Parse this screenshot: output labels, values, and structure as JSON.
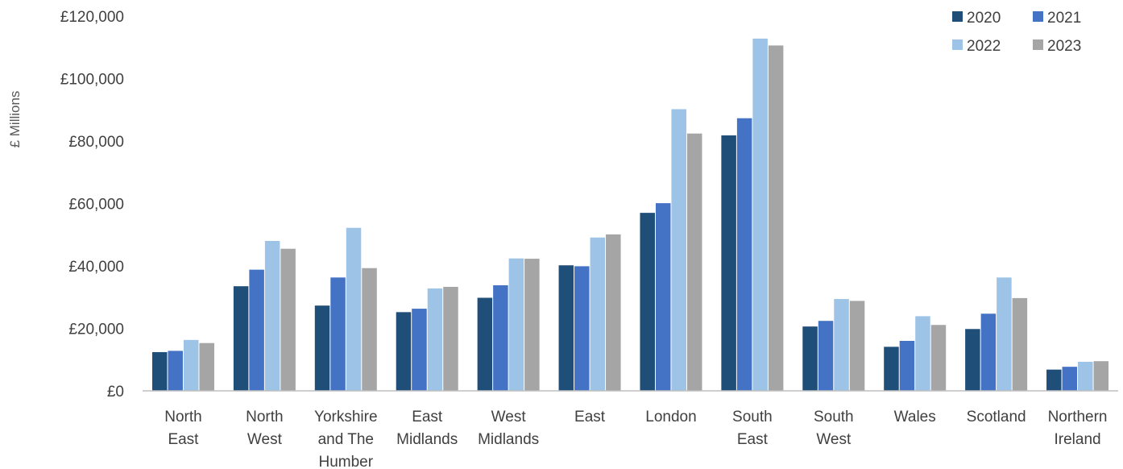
{
  "chart_data": {
    "type": "bar",
    "title": "",
    "xlabel": "",
    "ylabel": "£ Millions",
    "ylim": [
      0,
      120000
    ],
    "ytick_values": [
      0,
      20000,
      40000,
      60000,
      80000,
      100000,
      120000
    ],
    "ytick_labels": [
      "£0",
      "£20,000",
      "£40,000",
      "£60,000",
      "£80,000",
      "£100,000",
      "£120,000"
    ],
    "grid": false,
    "legend_position": "top-right",
    "categories": [
      [
        "North",
        "East"
      ],
      [
        "North",
        "West"
      ],
      [
        "Yorkshire",
        "and The",
        "Humber"
      ],
      [
        "East",
        "Midlands"
      ],
      [
        "West",
        "Midlands"
      ],
      [
        "East"
      ],
      [
        "London"
      ],
      [
        "South",
        "East"
      ],
      [
        "South",
        "West"
      ],
      [
        "Wales"
      ],
      [
        "Scotland"
      ],
      [
        "Northern",
        "Ireland"
      ]
    ],
    "series": [
      {
        "name": "2020",
        "color": "#1F4E79",
        "values": [
          12400,
          33500,
          27300,
          25200,
          29800,
          40200,
          57000,
          81800,
          20600,
          14100,
          19800,
          6800
        ]
      },
      {
        "name": "2021",
        "color": "#4472C4",
        "values": [
          12800,
          38800,
          36300,
          26300,
          33800,
          39900,
          60100,
          87300,
          22400,
          16000,
          24700,
          7700
        ]
      },
      {
        "name": "2022",
        "color": "#9DC3E6",
        "values": [
          16300,
          48000,
          52200,
          32800,
          42400,
          49100,
          90200,
          112800,
          29400,
          23900,
          36300,
          9300
        ]
      },
      {
        "name": "2023",
        "color": "#A5A5A5",
        "values": [
          15300,
          45500,
          39300,
          33300,
          42300,
          50100,
          82400,
          110600,
          28800,
          21100,
          29700,
          9500
        ]
      }
    ]
  }
}
